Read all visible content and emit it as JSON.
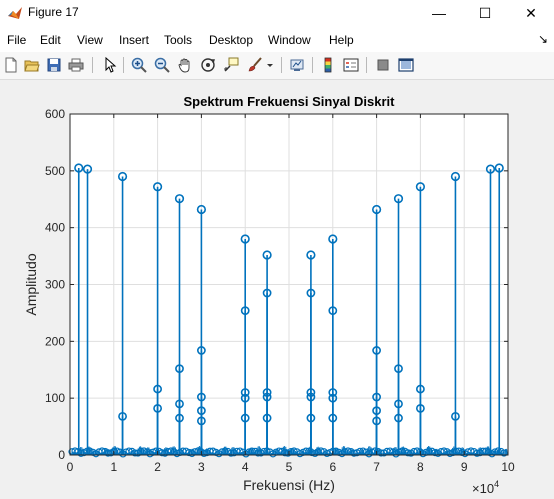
{
  "window": {
    "title": "Figure 17",
    "minimize_glyph": "—",
    "maximize_glyph": "☐",
    "close_glyph": "✕",
    "dock_glyph": "↘"
  },
  "menu": [
    "File",
    "Edit",
    "View",
    "Insert",
    "Tools",
    "Desktop",
    "Window",
    "Help"
  ],
  "toolbar_icons": [
    "new-figure-icon",
    "open-file-icon",
    "save-icon",
    "print-icon",
    "pointer-icon",
    "zoom-in-icon",
    "zoom-out-icon",
    "pan-icon",
    "rotate-3d-icon",
    "data-cursor-icon",
    "brush-icon",
    "brush-dropdown-icon",
    "link-plot-icon",
    "colorbar-icon",
    "legend-icon",
    "hide-plot-tools-icon",
    "show-plot-tools-icon"
  ],
  "colors": {
    "stem": "#0072bd",
    "axes_bg": "#ffffff",
    "figure_bg": "#f0f0f0",
    "grid": "#dfdfdf",
    "axis": "#262626"
  },
  "chart_data": {
    "type": "stem",
    "title": "Spektrum Frekuensi Sinyal Diskrit",
    "xlabel": "Frekuensi (Hz)",
    "ylabel": "Amplitudo",
    "x_exponent_label": "×10",
    "x_exponent": "4",
    "xlim": [
      0,
      100000
    ],
    "ylim": [
      0,
      600
    ],
    "xticks": [
      0,
      10000,
      20000,
      30000,
      40000,
      50000,
      60000,
      70000,
      80000,
      90000,
      100000
    ],
    "xtick_labels": [
      "0",
      "1",
      "2",
      "3",
      "4",
      "5",
      "6",
      "7",
      "8",
      "9",
      "10"
    ],
    "yticks": [
      0,
      100,
      200,
      300,
      400,
      500,
      600
    ],
    "ytick_labels": [
      "0",
      "100",
      "200",
      "300",
      "400",
      "500",
      "600"
    ],
    "grid": true,
    "peaks": [
      {
        "x": 2000,
        "y": 505
      },
      {
        "x": 4000,
        "y": 503
      },
      {
        "x": 12000,
        "y": 490
      },
      {
        "x": 20000,
        "y": 472
      },
      {
        "x": 25000,
        "y": 451
      },
      {
        "x": 30000,
        "y": 432
      },
      {
        "x": 40000,
        "y": 380
      },
      {
        "x": 45000,
        "y": 352
      },
      {
        "x": 55000,
        "y": 352
      },
      {
        "x": 60000,
        "y": 380
      },
      {
        "x": 70000,
        "y": 432
      },
      {
        "x": 75000,
        "y": 451
      },
      {
        "x": 80000,
        "y": 472
      },
      {
        "x": 88000,
        "y": 490
      },
      {
        "x": 96000,
        "y": 503
      },
      {
        "x": 98000,
        "y": 505
      }
    ],
    "side_lobes": [
      {
        "x": 12000,
        "y": 68
      },
      {
        "x": 20000,
        "y": 116
      },
      {
        "x": 20000,
        "y": 82
      },
      {
        "x": 25000,
        "y": 152
      },
      {
        "x": 25000,
        "y": 90
      },
      {
        "x": 25000,
        "y": 65
      },
      {
        "x": 30000,
        "y": 184
      },
      {
        "x": 30000,
        "y": 102
      },
      {
        "x": 30000,
        "y": 78
      },
      {
        "x": 30000,
        "y": 60
      },
      {
        "x": 40000,
        "y": 254
      },
      {
        "x": 40000,
        "y": 110
      },
      {
        "x": 40000,
        "y": 100
      },
      {
        "x": 40000,
        "y": 65
      },
      {
        "x": 45000,
        "y": 285
      },
      {
        "x": 45000,
        "y": 110
      },
      {
        "x": 45000,
        "y": 102
      },
      {
        "x": 45000,
        "y": 65
      },
      {
        "x": 55000,
        "y": 285
      },
      {
        "x": 55000,
        "y": 110
      },
      {
        "x": 55000,
        "y": 102
      },
      {
        "x": 55000,
        "y": 65
      },
      {
        "x": 60000,
        "y": 254
      },
      {
        "x": 60000,
        "y": 110
      },
      {
        "x": 60000,
        "y": 100
      },
      {
        "x": 60000,
        "y": 65
      },
      {
        "x": 70000,
        "y": 184
      },
      {
        "x": 70000,
        "y": 102
      },
      {
        "x": 70000,
        "y": 78
      },
      {
        "x": 70000,
        "y": 60
      },
      {
        "x": 75000,
        "y": 152
      },
      {
        "x": 75000,
        "y": 90
      },
      {
        "x": 75000,
        "y": 65
      },
      {
        "x": 80000,
        "y": 116
      },
      {
        "x": 80000,
        "y": 82
      },
      {
        "x": 88000,
        "y": 68
      }
    ]
  }
}
